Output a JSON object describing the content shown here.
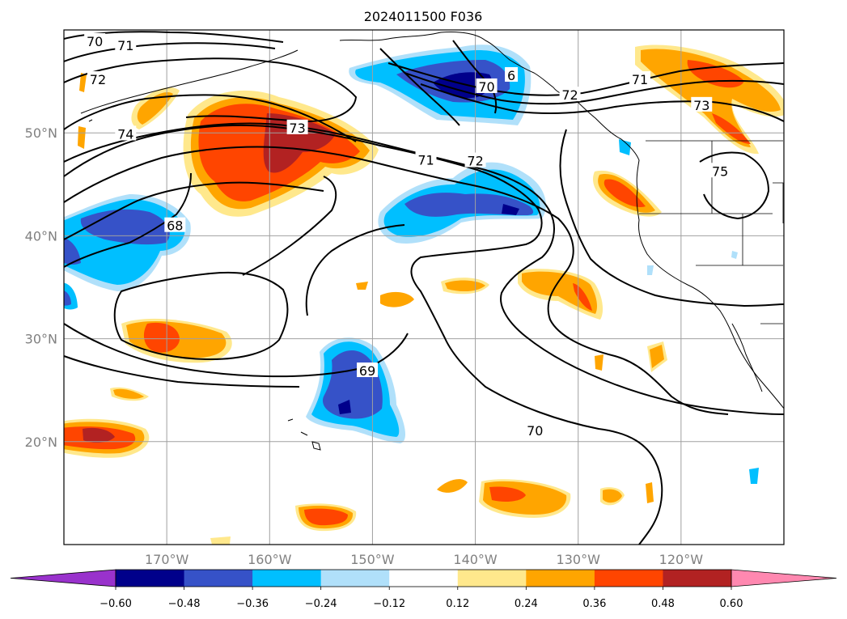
{
  "title": "2024011500 F036",
  "map": {
    "projection": "PlateCarree",
    "lon_range": [
      -180,
      -110
    ],
    "lat_range": [
      10,
      60
    ],
    "lat_ticks": [
      {
        "value": 50,
        "label": "50°N"
      },
      {
        "value": 40,
        "label": "40°N"
      },
      {
        "value": 30,
        "label": "30°N"
      },
      {
        "value": 20,
        "label": "20°N"
      }
    ],
    "lon_ticks": [
      {
        "value": -170,
        "label": "170°W"
      },
      {
        "value": -160,
        "label": "160°W"
      },
      {
        "value": -150,
        "label": "150°W"
      },
      {
        "value": -140,
        "label": "140°W"
      },
      {
        "value": -130,
        "label": "130°W"
      },
      {
        "value": -120,
        "label": "120°W"
      }
    ],
    "grid": true,
    "contour_labels": [
      {
        "text": "70",
        "lon": -177.0,
        "lat": 58.9
      },
      {
        "text": "71",
        "lon": -174.0,
        "lat": 58.5
      },
      {
        "text": "72",
        "lon": -176.7,
        "lat": 55.2
      },
      {
        "text": "74",
        "lon": -174.0,
        "lat": 49.9
      },
      {
        "text": "73",
        "lon": -157.3,
        "lat": 50.5
      },
      {
        "text": "71",
        "lon": -144.8,
        "lat": 47.4
      },
      {
        "text": "72",
        "lon": -140.0,
        "lat": 47.3
      },
      {
        "text": "68",
        "lon": -169.2,
        "lat": 41.0
      },
      {
        "text": "69",
        "lon": -150.5,
        "lat": 26.9
      },
      {
        "text": "70",
        "lon": -134.2,
        "lat": 21.1
      },
      {
        "text": "70",
        "lon": -138.9,
        "lat": 54.5
      },
      {
        "text": "6",
        "lon": -136.5,
        "lat": 55.6
      },
      {
        "text": "72",
        "lon": -130.8,
        "lat": 53.7
      },
      {
        "text": "71",
        "lon": -124.0,
        "lat": 55.2
      },
      {
        "text": "73",
        "lon": -118.0,
        "lat": 52.7
      },
      {
        "text": "75",
        "lon": -116.2,
        "lat": 46.3
      }
    ]
  },
  "colorbar": {
    "levels": [
      -0.6,
      -0.48,
      -0.36,
      -0.24,
      -0.12,
      0.12,
      0.24,
      0.36,
      0.48,
      0.6
    ],
    "labels": [
      "−0.60",
      "−0.48",
      "−0.36",
      "−0.24",
      "−0.12",
      "0.12",
      "0.24",
      "0.36",
      "0.48",
      "0.60"
    ],
    "colors": [
      "#00008b",
      "#3652c8",
      "#00bfff",
      "#b0e0fa",
      "#ffffff",
      "#ffe88c",
      "#ffa500",
      "#ff4500",
      "#b22222"
    ],
    "under_color": "#9932cc",
    "over_color": "#ff88b0",
    "extend": "both"
  },
  "styles": {
    "coast_color": "#000000",
    "contour_color": "#000000",
    "grid_color": "#a0a0a0",
    "tick_label_color": "#808080"
  }
}
